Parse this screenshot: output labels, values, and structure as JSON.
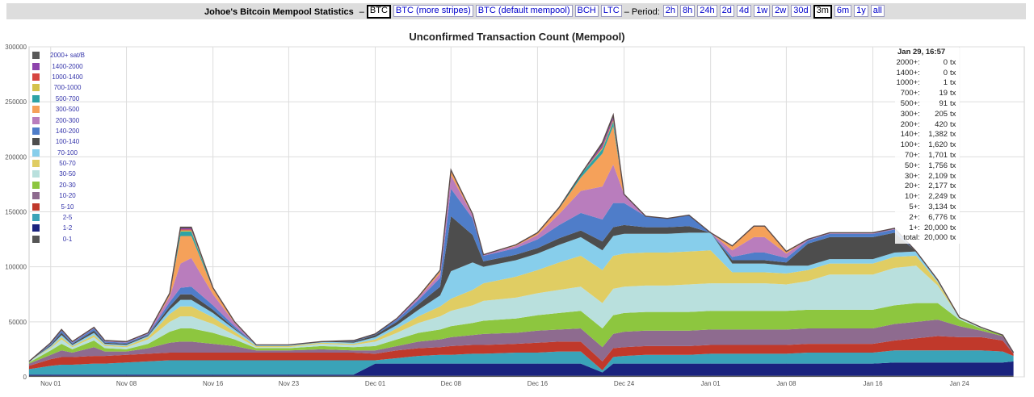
{
  "topbar": {
    "brand": "Johoe's Bitcoin Mempool Statistics",
    "dash": "–",
    "coins": [
      {
        "label": "BTC",
        "active": true
      },
      {
        "label": "BTC (more stripes)",
        "active": false
      },
      {
        "label": "BTC (default mempool)",
        "active": false
      },
      {
        "label": "BCH",
        "active": false
      },
      {
        "label": "LTC",
        "active": false
      }
    ],
    "period_label": "– Period:",
    "periods": [
      {
        "label": "2h",
        "active": false
      },
      {
        "label": "8h",
        "active": false
      },
      {
        "label": "24h",
        "active": false
      },
      {
        "label": "2d",
        "active": false
      },
      {
        "label": "4d",
        "active": false
      },
      {
        "label": "1w",
        "active": false
      },
      {
        "label": "2w",
        "active": false
      },
      {
        "label": "30d",
        "active": false
      },
      {
        "label": "3m",
        "active": true
      },
      {
        "label": "6m",
        "active": false
      },
      {
        "label": "1y",
        "active": false
      },
      {
        "label": "all",
        "active": false
      }
    ]
  },
  "tooltip": {
    "title": "Jan 29, 16:57",
    "rows": [
      {
        "label": "2000+:",
        "value": "0",
        "unit": "tx"
      },
      {
        "label": "1400+:",
        "value": "0",
        "unit": "tx"
      },
      {
        "label": "1000+:",
        "value": "1",
        "unit": "tx"
      },
      {
        "label": "700+:",
        "value": "19",
        "unit": "tx"
      },
      {
        "label": "500+:",
        "value": "91",
        "unit": "tx"
      },
      {
        "label": "300+:",
        "value": "205",
        "unit": "tx"
      },
      {
        "label": "200+:",
        "value": "420",
        "unit": "tx"
      },
      {
        "label": "140+:",
        "value": "1,382",
        "unit": "tx"
      },
      {
        "label": "100+:",
        "value": "1,620",
        "unit": "tx"
      },
      {
        "label": "70+:",
        "value": "1,701",
        "unit": "tx"
      },
      {
        "label": "50+:",
        "value": "1,756",
        "unit": "tx"
      },
      {
        "label": "30+:",
        "value": "2,109",
        "unit": "tx"
      },
      {
        "label": "20+:",
        "value": "2,177",
        "unit": "tx"
      },
      {
        "label": "10+:",
        "value": "2,249",
        "unit": "tx"
      },
      {
        "label": "5+:",
        "value": "3,134",
        "unit": "tx"
      },
      {
        "label": "2+:",
        "value": "6,776",
        "unit": "tx"
      },
      {
        "label": "1+:",
        "value": "20,000",
        "unit": "tx"
      },
      {
        "label": "total:",
        "value": "20,000",
        "unit": "tx"
      }
    ]
  },
  "chart_data": {
    "type": "area",
    "stacked": true,
    "title": "Unconfirmed Transaction Count (Mempool)",
    "ylim": [
      0,
      300000
    ],
    "yticks": [
      0,
      50000,
      100000,
      150000,
      200000,
      250000,
      300000
    ],
    "xlim": [
      "Oct 30",
      "Jan 30"
    ],
    "xticks": [
      "Nov 01",
      "Nov 08",
      "Nov 16",
      "Nov 23",
      "Dec 01",
      "Dec 08",
      "Dec 16",
      "Dec 24",
      "Jan 01",
      "Jan 08",
      "Jan 16",
      "Jan 24"
    ],
    "grid": true,
    "legend_position": "top-left",
    "x": [
      "Oct 30",
      "Nov 01",
      "Nov 02",
      "Nov 03",
      "Nov 05",
      "Nov 06",
      "Nov 08",
      "Nov 10",
      "Nov 12",
      "Nov 13",
      "Nov 14",
      "Nov 16",
      "Nov 18",
      "Nov 20",
      "Nov 23",
      "Nov 26",
      "Nov 29",
      "Dec 01",
      "Dec 03",
      "Dec 05",
      "Dec 07",
      "Dec 08",
      "Dec 10",
      "Dec 11",
      "Dec 14",
      "Dec 16",
      "Dec 18",
      "Dec 20",
      "Dec 22",
      "Dec 23",
      "Dec 24",
      "Dec 26",
      "Dec 28",
      "Dec 30",
      "Jan 01",
      "Jan 03",
      "Jan 05",
      "Jan 06",
      "Jan 08",
      "Jan 10",
      "Jan 12",
      "Jan 14",
      "Jan 16",
      "Jan 18",
      "Jan 20",
      "Jan 22",
      "Jan 24",
      "Jan 26",
      "Jan 28",
      "Jan 29"
    ],
    "series": [
      {
        "name": "0-1",
        "color": "#555555",
        "values": [
          1000,
          1000,
          1000,
          1000,
          1000,
          1000,
          1000,
          1000,
          1000,
          1000,
          1000,
          1000,
          1000,
          1000,
          1000,
          1000,
          1000,
          1000,
          1000,
          1000,
          1000,
          1000,
          1000,
          1000,
          1000,
          1000,
          1000,
          1000,
          1000,
          1000,
          1000,
          1000,
          1000,
          1000,
          1000,
          1000,
          1000,
          1000,
          1000,
          1000,
          1000,
          1000,
          1000,
          1000,
          1000,
          1000,
          1000,
          1000,
          1000,
          1000
        ]
      },
      {
        "name": "1-2",
        "color": "#1a237e",
        "values": [
          1000,
          1000,
          1000,
          1000,
          1000,
          1000,
          1000,
          1000,
          1000,
          1000,
          1000,
          1000,
          1000,
          1000,
          1000,
          1000,
          1000,
          11000,
          11000,
          11000,
          11000,
          11000,
          11000,
          11000,
          11000,
          11000,
          11000,
          11000,
          3000,
          11000,
          11000,
          11000,
          11000,
          11000,
          11000,
          11000,
          11000,
          11000,
          11000,
          11000,
          11000,
          11000,
          11000,
          12000,
          12000,
          12000,
          12000,
          12000,
          12000,
          13000
        ]
      },
      {
        "name": "2-5",
        "color": "#3aa3b8",
        "values": [
          5000,
          8000,
          9000,
          9000,
          10000,
          10000,
          11000,
          12000,
          13000,
          13000,
          13000,
          13000,
          13000,
          13000,
          13000,
          13000,
          13000,
          3000,
          5000,
          7000,
          8000,
          8000,
          9000,
          9000,
          10000,
          10000,
          11000,
          11000,
          2000,
          6000,
          7000,
          8000,
          8000,
          8000,
          9000,
          9000,
          9000,
          9000,
          9000,
          10000,
          10000,
          10000,
          10000,
          11000,
          11000,
          11000,
          11000,
          11000,
          10000,
          5000
        ]
      },
      {
        "name": "5-10",
        "color": "#c0392b",
        "values": [
          3000,
          6000,
          7000,
          7000,
          7000,
          7000,
          7000,
          7000,
          7000,
          7000,
          7000,
          7000,
          7000,
          7000,
          7000,
          7000,
          7000,
          6000,
          7000,
          7000,
          7000,
          8000,
          8000,
          8000,
          8000,
          9000,
          9000,
          9000,
          8000,
          8000,
          8000,
          8000,
          8000,
          8000,
          8000,
          8000,
          8000,
          8000,
          8000,
          8000,
          8000,
          8000,
          8000,
          9000,
          11000,
          13000,
          12000,
          12000,
          10000,
          2000
        ]
      },
      {
        "name": "10-20",
        "color": "#8e6b8f",
        "values": [
          2000,
          4000,
          6000,
          4000,
          8000,
          4000,
          3000,
          5000,
          9000,
          10000,
          10000,
          8000,
          6000,
          2000,
          2000,
          3000,
          2000,
          3000,
          4000,
          6000,
          7000,
          8000,
          9000,
          10000,
          10000,
          11000,
          11000,
          12000,
          13000,
          13000,
          14000,
          14000,
          14000,
          14000,
          14000,
          14000,
          14000,
          14000,
          14000,
          14000,
          14000,
          14000,
          14000,
          15000,
          15000,
          15000,
          10000,
          6000,
          4000,
          1000
        ]
      },
      {
        "name": "20-30",
        "color": "#8dc63f",
        "values": [
          1000,
          4000,
          6000,
          3000,
          6000,
          3000,
          2000,
          4000,
          10000,
          12000,
          12000,
          10000,
          6000,
          2000,
          2000,
          3000,
          3000,
          4000,
          6000,
          8000,
          9000,
          10000,
          11000,
          12000,
          13000,
          14000,
          15000,
          16000,
          17000,
          17000,
          17000,
          17000,
          17000,
          17000,
          17000,
          17000,
          17000,
          17000,
          17000,
          17000,
          17000,
          17000,
          17000,
          17000,
          17000,
          15000,
          6000,
          2000,
          1000,
          0
        ]
      },
      {
        "name": "30-50",
        "color": "#b9e0dd",
        "values": [
          1000,
          2000,
          4000,
          2000,
          3000,
          2000,
          2000,
          4000,
          9000,
          11000,
          11000,
          8000,
          4000,
          1000,
          1000,
          2000,
          2000,
          4000,
          6000,
          9000,
          12000,
          14000,
          16000,
          18000,
          19000,
          20000,
          21000,
          22000,
          23000,
          24000,
          24000,
          24000,
          24000,
          25000,
          25000,
          25000,
          25000,
          25000,
          24000,
          26000,
          32000,
          32000,
          32000,
          34000,
          34000,
          16000,
          2000,
          1000,
          0,
          0
        ]
      },
      {
        "name": "50-70",
        "color": "#e0cd63",
        "values": [
          0,
          1000,
          2000,
          1000,
          2000,
          1000,
          1000,
          2000,
          7000,
          9000,
          9000,
          6000,
          3000,
          1000,
          1000,
          1000,
          1000,
          2000,
          4000,
          6000,
          9000,
          11000,
          14000,
          16000,
          19000,
          21000,
          25000,
          28000,
          30000,
          30000,
          30000,
          30000,
          30000,
          30000,
          30000,
          10000,
          10000,
          10000,
          10000,
          10000,
          10000,
          10000,
          10000,
          10000,
          9000,
          3000,
          0,
          0,
          0,
          0
        ]
      },
      {
        "name": "70-100",
        "color": "#87ceeb",
        "values": [
          0,
          1000,
          2000,
          1000,
          2000,
          1000,
          1000,
          1000,
          4000,
          6000,
          6000,
          4000,
          2000,
          1000,
          1000,
          1000,
          1000,
          2000,
          3000,
          6000,
          10000,
          25000,
          25000,
          15000,
          15000,
          15000,
          16000,
          17000,
          18000,
          18000,
          18000,
          17000,
          17000,
          17000,
          16000,
          8000,
          8000,
          8000,
          7000,
          4000,
          4000,
          4000,
          4000,
          4000,
          4000,
          2000,
          0,
          0,
          0,
          0
        ]
      },
      {
        "name": "100-140",
        "color": "#4d4d4d",
        "values": [
          0,
          1000,
          2000,
          1000,
          2000,
          1000,
          1000,
          1000,
          3000,
          5000,
          5000,
          3000,
          1000,
          0,
          0,
          0,
          1000,
          2000,
          3000,
          5000,
          8000,
          50000,
          25000,
          5000,
          5000,
          5000,
          6000,
          6000,
          8000,
          8000,
          8000,
          6000,
          6000,
          6000,
          0,
          3000,
          3000,
          3000,
          3000,
          20000,
          20000,
          20000,
          20000,
          18000,
          0,
          0,
          0,
          0,
          0,
          0
        ]
      },
      {
        "name": "140-200",
        "color": "#4f7dc9",
        "values": [
          0,
          1000,
          2000,
          1000,
          2000,
          1000,
          1000,
          1000,
          4000,
          6000,
          7000,
          4000,
          2000,
          0,
          0,
          0,
          1000,
          1000,
          2000,
          4000,
          8000,
          25000,
          15000,
          5000,
          6000,
          8000,
          12000,
          16000,
          20000,
          22000,
          20000,
          10000,
          8000,
          10000,
          0,
          3000,
          7000,
          7000,
          4000,
          3000,
          3000,
          3000,
          3000,
          3000,
          0,
          0,
          0,
          0,
          0,
          0
        ]
      },
      {
        "name": "200-300",
        "color": "#b97dbd",
        "values": [
          0,
          1000,
          1000,
          1000,
          1000,
          1000,
          1000,
          1000,
          5000,
          22000,
          26000,
          10000,
          3000,
          0,
          0,
          0,
          0,
          0,
          1000,
          2000,
          4000,
          12000,
          3000,
          1000,
          2000,
          4000,
          10000,
          20000,
          30000,
          35000,
          8000,
          0,
          0,
          0,
          0,
          6000,
          14000,
          14000,
          4000,
          1000,
          1000,
          1000,
          1000,
          1000,
          0,
          0,
          0,
          0,
          0,
          0
        ]
      },
      {
        "name": "300-500",
        "color": "#f5a15a",
        "values": [
          0,
          0,
          0,
          0,
          0,
          0,
          0,
          0,
          2000,
          25000,
          20000,
          5000,
          1000,
          0,
          0,
          0,
          0,
          0,
          0,
          1000,
          2000,
          4000,
          1000,
          0,
          1000,
          2000,
          5000,
          12000,
          30000,
          35000,
          0,
          0,
          0,
          0,
          0,
          4000,
          10000,
          10000,
          2000,
          0,
          0,
          0,
          0,
          0,
          0,
          0,
          0,
          0,
          0,
          0
        ]
      },
      {
        "name": "500-700",
        "color": "#2ea3a6",
        "values": [
          0,
          0,
          0,
          0,
          0,
          0,
          0,
          0,
          1000,
          4000,
          4000,
          1000,
          0,
          0,
          0,
          0,
          0,
          0,
          0,
          0,
          1000,
          1000,
          0,
          0,
          0,
          0,
          1000,
          3000,
          4000,
          4000,
          0,
          0,
          0,
          0,
          0,
          0,
          0,
          0,
          0,
          0,
          0,
          0,
          0,
          0,
          0,
          0,
          0,
          0,
          0,
          0
        ]
      },
      {
        "name": "700-1000",
        "color": "#d4c24b",
        "values": [
          0,
          0,
          0,
          0,
          0,
          0,
          0,
          0,
          0,
          1000,
          1000,
          0,
          0,
          0,
          0,
          0,
          0,
          0,
          0,
          0,
          0,
          0,
          0,
          0,
          0,
          0,
          0,
          0,
          1000,
          1000,
          0,
          0,
          0,
          0,
          0,
          0,
          0,
          0,
          0,
          0,
          0,
          0,
          0,
          0,
          0,
          0,
          0,
          0,
          0,
          0
        ]
      },
      {
        "name": "1000-1400",
        "color": "#d64541",
        "values": [
          0,
          0,
          0,
          0,
          0,
          0,
          0,
          0,
          0,
          1000,
          1000,
          0,
          0,
          0,
          0,
          0,
          0,
          0,
          0,
          0,
          0,
          0,
          0,
          0,
          0,
          0,
          0,
          0,
          1000,
          1000,
          0,
          0,
          0,
          0,
          0,
          0,
          0,
          0,
          0,
          0,
          0,
          0,
          0,
          0,
          0,
          0,
          0,
          0,
          0,
          0
        ]
      },
      {
        "name": "1400-2000",
        "color": "#8e44ad",
        "values": [
          0,
          0,
          0,
          0,
          0,
          0,
          0,
          0,
          0,
          1000,
          1000,
          0,
          0,
          0,
          0,
          0,
          0,
          0,
          0,
          0,
          0,
          0,
          0,
          0,
          0,
          0,
          0,
          0,
          2000,
          2000,
          0,
          0,
          0,
          0,
          0,
          0,
          0,
          0,
          0,
          0,
          0,
          0,
          0,
          0,
          0,
          0,
          0,
          0,
          0,
          0
        ]
      },
      {
        "name": "2000+ sat/B",
        "color": "#5a5a5a",
        "values": [
          0,
          0,
          0,
          0,
          0,
          0,
          0,
          0,
          0,
          1000,
          1000,
          0,
          0,
          0,
          0,
          0,
          0,
          0,
          0,
          0,
          0,
          0,
          0,
          0,
          0,
          0,
          0,
          0,
          2000,
          2000,
          0,
          0,
          0,
          0,
          0,
          0,
          0,
          0,
          0,
          0,
          0,
          0,
          0,
          0,
          0,
          0,
          0,
          0,
          0,
          0
        ]
      }
    ]
  }
}
